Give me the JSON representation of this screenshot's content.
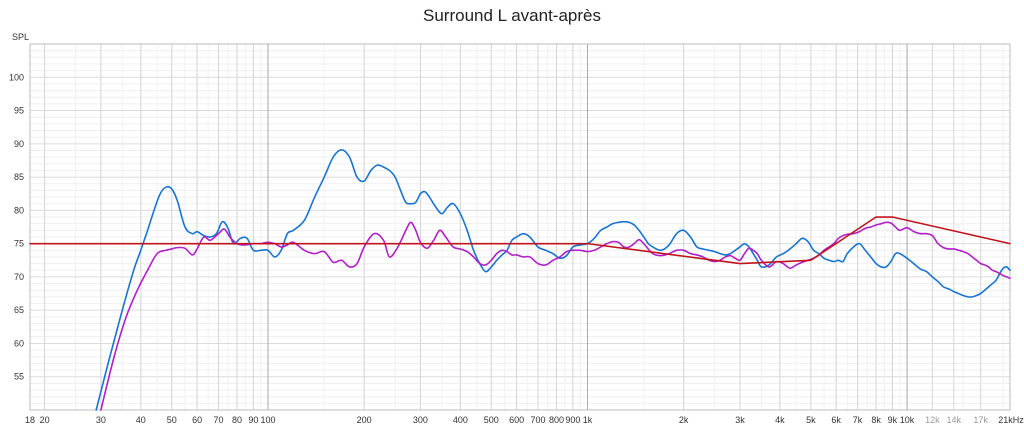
{
  "chart_data": {
    "type": "line",
    "title": "Surround L avant-après",
    "ylabel": "SPL",
    "xlabel": "",
    "x_scale": "log",
    "xlim": [
      18,
      21000
    ],
    "ylim": [
      50,
      105
    ],
    "grid": true,
    "y_ticks": [
      55,
      60,
      65,
      70,
      75,
      80,
      85,
      90,
      95,
      100
    ],
    "x_ticks": [
      {
        "value": 18,
        "label": "18",
        "major": true
      },
      {
        "value": 20,
        "label": "20",
        "major": true
      },
      {
        "value": 30,
        "label": "30",
        "major": true
      },
      {
        "value": 40,
        "label": "40",
        "major": true
      },
      {
        "value": 50,
        "label": "50",
        "major": true
      },
      {
        "value": 60,
        "label": "60",
        "major": true
      },
      {
        "value": 70,
        "label": "70",
        "major": true
      },
      {
        "value": 80,
        "label": "80",
        "major": true
      },
      {
        "value": 90,
        "label": "90",
        "major": true
      },
      {
        "value": 100,
        "label": "100",
        "major": true
      },
      {
        "value": 200,
        "label": "200",
        "major": true
      },
      {
        "value": 300,
        "label": "300",
        "major": true
      },
      {
        "value": 400,
        "label": "400",
        "major": true
      },
      {
        "value": 500,
        "label": "500",
        "major": true
      },
      {
        "value": 600,
        "label": "600",
        "major": true
      },
      {
        "value": 700,
        "label": "700",
        "major": true
      },
      {
        "value": 800,
        "label": "800",
        "major": true
      },
      {
        "value": 900,
        "label": "900",
        "major": true
      },
      {
        "value": 1000,
        "label": "1k",
        "major": true
      },
      {
        "value": 2000,
        "label": "2k",
        "major": true
      },
      {
        "value": 3000,
        "label": "3k",
        "major": true
      },
      {
        "value": 4000,
        "label": "4k",
        "major": true
      },
      {
        "value": 5000,
        "label": "5k",
        "major": true
      },
      {
        "value": 6000,
        "label": "6k",
        "major": true
      },
      {
        "value": 7000,
        "label": "7k",
        "major": true
      },
      {
        "value": 8000,
        "label": "8k",
        "major": true
      },
      {
        "value": 9000,
        "label": "9k",
        "major": true
      },
      {
        "value": 10000,
        "label": "10k",
        "major": true
      },
      {
        "value": 12000,
        "label": "12k",
        "major": false
      },
      {
        "value": 14000,
        "label": "14k",
        "major": false
      },
      {
        "value": 17000,
        "label": "17k",
        "major": false
      },
      {
        "value": 21000,
        "label": "21kHz",
        "major": true
      }
    ],
    "series": [
      {
        "color": "#c0141c",
        "x": [
          18,
          1000,
          3000,
          5000,
          8000,
          9000,
          21000
        ],
        "y": [
          75,
          75,
          72,
          72.5,
          79,
          79,
          75
        ]
      },
      {
        "color": "#1874d2",
        "x": [
          29,
          32,
          35,
          38,
          40,
          42,
          44,
          46,
          48,
          50,
          52,
          55,
          58,
          60,
          63,
          66,
          69,
          72,
          75,
          78,
          82,
          86,
          90,
          95,
          100,
          105,
          110,
          115,
          120,
          130,
          140,
          150,
          160,
          170,
          180,
          190,
          200,
          210,
          220,
          230,
          240,
          250,
          260,
          270,
          280,
          290,
          300,
          310,
          320,
          335,
          350,
          365,
          380,
          400,
          420,
          440,
          460,
          480,
          500,
          520,
          540,
          560,
          580,
          600,
          630,
          660,
          700,
          740,
          780,
          820,
          860,
          900,
          950,
          1000,
          1050,
          1100,
          1150,
          1200,
          1250,
          1300,
          1350,
          1400,
          1450,
          1500,
          1550,
          1600,
          1700,
          1800,
          1900,
          2000,
          2100,
          2200,
          2300,
          2400,
          2500,
          2600,
          2700,
          2800,
          2900,
          3000,
          3100,
          3200,
          3300,
          3400,
          3500,
          3700,
          3900,
          4100,
          4300,
          4500,
          4700,
          4900,
          5100,
          5300,
          5500,
          5700,
          5900,
          6100,
          6300,
          6500,
          6800,
          7100,
          7400,
          7700,
          8000,
          8300,
          8600,
          8900,
          9200,
          9500,
          10000,
          10500,
          11000,
          11500,
          12000,
          12500,
          13000,
          13500,
          14000,
          14500,
          15000,
          15500,
          16000,
          16500,
          17000,
          17500,
          18000,
          18500,
          19000,
          19500,
          20000,
          20500,
          21000
        ],
        "y": [
          50,
          58,
          65,
          71,
          74,
          77,
          80,
          82.5,
          83.5,
          83.2,
          81.5,
          77.5,
          76.5,
          76.8,
          76.2,
          76,
          76.5,
          78.3,
          77.3,
          75,
          75.8,
          75.8,
          74,
          74,
          74,
          73,
          74,
          76.5,
          77,
          78.5,
          82,
          85,
          88,
          89.1,
          88,
          85,
          84.4,
          86,
          86.8,
          86.5,
          86,
          85,
          83,
          81.2,
          81,
          81.2,
          82.5,
          82.8,
          82,
          80.5,
          79.5,
          80.5,
          81,
          79.5,
          77,
          74,
          72,
          70.8,
          71.5,
          72.5,
          73.3,
          74,
          75.5,
          76,
          76.5,
          76,
          74.5,
          74,
          73.5,
          72.8,
          73.2,
          74.5,
          74.8,
          75,
          75.8,
          77,
          77.5,
          78,
          78.2,
          78.3,
          78.2,
          77.8,
          77,
          76,
          75,
          74.5,
          74,
          74.8,
          76.5,
          77,
          76,
          74.5,
          74.2,
          74,
          73.8,
          73.5,
          73.3,
          73.5,
          74,
          74.5,
          75,
          74.5,
          73.5,
          72.5,
          71.5,
          71.8,
          73,
          73.5,
          74.2,
          75,
          75.8,
          75.3,
          74,
          73.5,
          72.8,
          72.5,
          72.3,
          72.5,
          72.3,
          73.5,
          74.5,
          75,
          74,
          73,
          72,
          71.5,
          71.5,
          72.3,
          73.5,
          73.5,
          72.8,
          72,
          71.2,
          70.8,
          70,
          69.3,
          68.5,
          68.2,
          67.8,
          67.5,
          67.2,
          67,
          67,
          67.2,
          67.5,
          68,
          68.5,
          69,
          69.5,
          70.5,
          71.3,
          71.5,
          71
        ]
      },
      {
        "color": "#b21ec8",
        "x": [
          30,
          33,
          36,
          39,
          42,
          45,
          48,
          50,
          52,
          55,
          58,
          60,
          63,
          66,
          70,
          73,
          76,
          80,
          85,
          90,
          95,
          100,
          105,
          110,
          115,
          120,
          130,
          140,
          150,
          160,
          170,
          180,
          190,
          200,
          215,
          230,
          240,
          255,
          270,
          280,
          290,
          300,
          315,
          330,
          345,
          360,
          380,
          400,
          420,
          440,
          460,
          480,
          500,
          520,
          540,
          560,
          580,
          600,
          630,
          660,
          700,
          740,
          780,
          820,
          860,
          900,
          950,
          1000,
          1050,
          1100,
          1150,
          1200,
          1250,
          1300,
          1350,
          1400,
          1450,
          1500,
          1600,
          1700,
          1800,
          1900,
          2000,
          2100,
          2200,
          2300,
          2400,
          2500,
          2600,
          2700,
          2800,
          2900,
          3000,
          3100,
          3200,
          3300,
          3400,
          3500,
          3700,
          3900,
          4100,
          4300,
          4500,
          4700,
          4900,
          5100,
          5300,
          5500,
          5700,
          5900,
          6100,
          6300,
          6500,
          6800,
          7100,
          7400,
          7700,
          8000,
          8300,
          8600,
          8900,
          9200,
          9500,
          10000,
          10500,
          11000,
          11500,
          12000,
          12500,
          13000,
          13500,
          14000,
          14500,
          15000,
          15500,
          16000,
          16500,
          17000,
          17500,
          18000,
          18500,
          19000,
          19500,
          20000,
          20500,
          21000
        ],
        "y": [
          50,
          58,
          64,
          68,
          71,
          73.5,
          74,
          74.2,
          74.4,
          74.3,
          73.3,
          74.2,
          76,
          75.5,
          76.5,
          77.2,
          76,
          75,
          74.8,
          75,
          75,
          75.2,
          75,
          74.5,
          74.8,
          75.2,
          74,
          73.5,
          73.8,
          72.2,
          72.5,
          71.5,
          72,
          74.5,
          76.5,
          75.5,
          73,
          74.5,
          77,
          78.2,
          77,
          75.2,
          74.3,
          75.5,
          77,
          76,
          74.5,
          74.2,
          73.8,
          73,
          72,
          71.8,
          72.5,
          73.5,
          74,
          73.8,
          73.3,
          73.3,
          73,
          73,
          72,
          71.8,
          72.5,
          73,
          73.8,
          74,
          74,
          73.8,
          74,
          74.5,
          75,
          75.3,
          75.2,
          74.5,
          74.5,
          75,
          75.6,
          75,
          73.5,
          73.2,
          73.5,
          74,
          74,
          73.5,
          73.3,
          73,
          72.5,
          72.3,
          72.5,
          73,
          73.2,
          72.8,
          72.5,
          73.5,
          74.3,
          74,
          73.5,
          72.5,
          71.5,
          72.3,
          72,
          71.3,
          71.8,
          72.2,
          72.5,
          72.8,
          73.3,
          74,
          74.5,
          75,
          75.8,
          76.2,
          76.4,
          76.5,
          76.8,
          77.3,
          77.5,
          77.8,
          78,
          78.2,
          78.1,
          77.5,
          77,
          77.4,
          76.8,
          76.5,
          76.5,
          76.2,
          75,
          74.4,
          74.2,
          74.2,
          74,
          73.8,
          73.5,
          73,
          72.5,
          72,
          71.8,
          71.5,
          71,
          70.8,
          70.5,
          70.2,
          70,
          69.8
        ]
      }
    ]
  }
}
